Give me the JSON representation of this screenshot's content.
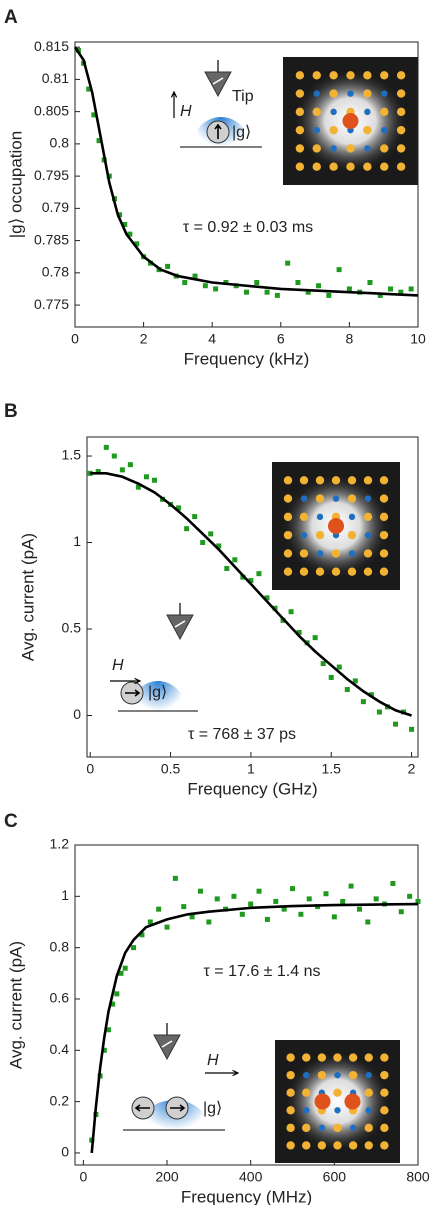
{
  "chart_data": [
    {
      "type": "scatter",
      "panel": "A",
      "xlabel": "Frequency (kHz)",
      "ylabel": "|g⟩ occupation",
      "xlim": [
        0,
        10
      ],
      "ylim": [
        0.7716,
        0.8158
      ],
      "xticks": [
        0,
        2,
        4,
        6,
        8,
        10
      ],
      "yticks": [
        0.775,
        0.78,
        0.785,
        0.79,
        0.795,
        0.8,
        0.805,
        0.81,
        0.815
      ],
      "annotations": [
        "Tip",
        "H",
        "|g⟩",
        "τ = 0.92 ± 0.03 ms"
      ],
      "series": [
        {
          "mode": "markers",
          "color": "#1f9a1f",
          "x": [
            0.1,
            0.25,
            0.4,
            0.55,
            0.7,
            0.85,
            1.0,
            1.15,
            1.3,
            1.45,
            1.6,
            1.8,
            2.0,
            2.2,
            2.45,
            2.7,
            2.95,
            3.2,
            3.5,
            3.8,
            4.1,
            4.4,
            4.7,
            5.0,
            5.3,
            5.6,
            5.9,
            6.2,
            6.5,
            6.8,
            7.1,
            7.4,
            7.7,
            8.0,
            8.3,
            8.6,
            8.9,
            9.2,
            9.5,
            9.8
          ],
          "values": [
            0.8145,
            0.8125,
            0.8085,
            0.8045,
            0.8005,
            0.7975,
            0.795,
            0.7915,
            0.789,
            0.7875,
            0.786,
            0.7845,
            0.7825,
            0.7815,
            0.7805,
            0.781,
            0.7795,
            0.7785,
            0.7795,
            0.778,
            0.7775,
            0.7785,
            0.778,
            0.777,
            0.7785,
            0.777,
            0.7765,
            0.7815,
            0.7785,
            0.777,
            0.778,
            0.7765,
            0.7805,
            0.7775,
            0.777,
            0.7785,
            0.7765,
            0.7775,
            0.777,
            0.7775
          ]
        },
        {
          "mode": "line",
          "color": "#000000",
          "x": [
            0,
            0.25,
            0.5,
            0.75,
            1,
            1.25,
            1.5,
            2,
            2.5,
            3,
            4,
            5,
            6,
            8,
            10
          ],
          "values": [
            0.815,
            0.813,
            0.808,
            0.801,
            0.794,
            0.789,
            0.786,
            0.7825,
            0.7805,
            0.7795,
            0.7785,
            0.778,
            0.7775,
            0.777,
            0.7765
          ]
        }
      ]
    },
    {
      "type": "scatter",
      "panel": "B",
      "xlabel": "Frequency (GHz)",
      "ylabel": "Avg. current (pA)",
      "xlim": [
        -0.02,
        2.04
      ],
      "ylim": [
        -0.24,
        1.61
      ],
      "xticks": [
        0,
        0.5,
        1,
        1.5,
        2
      ],
      "yticks": [
        0,
        0.5,
        1,
        1.5
      ],
      "annotations": [
        "H",
        "|g⟩",
        "τ = 768 ± 37 ps"
      ],
      "series": [
        {
          "mode": "markers",
          "color": "#1f9a1f",
          "x": [
            0,
            0.05,
            0.1,
            0.15,
            0.2,
            0.25,
            0.3,
            0.35,
            0.4,
            0.45,
            0.5,
            0.55,
            0.6,
            0.65,
            0.7,
            0.75,
            0.8,
            0.85,
            0.9,
            0.95,
            1.0,
            1.05,
            1.1,
            1.15,
            1.2,
            1.25,
            1.3,
            1.35,
            1.4,
            1.45,
            1.5,
            1.55,
            1.6,
            1.65,
            1.7,
            1.75,
            1.8,
            1.85,
            1.9,
            1.95,
            2.0
          ],
          "values": [
            1.4,
            1.41,
            1.55,
            1.5,
            1.42,
            1.45,
            1.32,
            1.38,
            1.36,
            1.25,
            1.22,
            1.2,
            1.08,
            1.15,
            1.0,
            1.05,
            0.98,
            0.85,
            0.9,
            0.8,
            0.78,
            0.82,
            0.68,
            0.62,
            0.55,
            0.6,
            0.48,
            0.42,
            0.45,
            0.3,
            0.22,
            0.28,
            0.15,
            0.2,
            0.08,
            0.12,
            0.02,
            0.05,
            -0.05,
            0.02,
            -0.08
          ]
        },
        {
          "mode": "line",
          "color": "#000000",
          "x": [
            0,
            0.1,
            0.2,
            0.3,
            0.4,
            0.5,
            0.6,
            0.7,
            0.8,
            0.9,
            1.0,
            1.1,
            1.2,
            1.3,
            1.4,
            1.5,
            1.6,
            1.7,
            1.8,
            1.9,
            2.0
          ],
          "values": [
            1.4,
            1.4,
            1.38,
            1.34,
            1.29,
            1.22,
            1.14,
            1.05,
            0.96,
            0.86,
            0.76,
            0.66,
            0.56,
            0.46,
            0.37,
            0.29,
            0.21,
            0.14,
            0.08,
            0.03,
            0.0
          ]
        }
      ]
    },
    {
      "type": "scatter",
      "panel": "C",
      "xlabel": "Frequency (MHz)",
      "ylabel": "Avg. current (pA)",
      "xlim": [
        -20,
        800
      ],
      "ylim": [
        -0.047,
        1.2
      ],
      "xticks": [
        0,
        200,
        400,
        600,
        800
      ],
      "yticks": [
        0,
        0.2,
        0.4,
        0.6,
        0.8,
        1,
        1.2
      ],
      "annotations": [
        "H",
        "|g⟩",
        "τ = 17.6 ± 1.4 ns"
      ],
      "series": [
        {
          "mode": "markers",
          "color": "#1f9a1f",
          "x": [
            20,
            30,
            40,
            50,
            60,
            70,
            80,
            90,
            100,
            120,
            140,
            160,
            180,
            200,
            220,
            240,
            260,
            280,
            300,
            320,
            340,
            360,
            380,
            400,
            420,
            440,
            460,
            480,
            500,
            520,
            540,
            560,
            580,
            600,
            620,
            640,
            660,
            680,
            700,
            720,
            740,
            760,
            780,
            800
          ],
          "values": [
            0.05,
            0.15,
            0.3,
            0.4,
            0.48,
            0.58,
            0.62,
            0.7,
            0.72,
            0.8,
            0.85,
            0.9,
            0.95,
            0.88,
            1.07,
            0.96,
            0.92,
            1.02,
            0.9,
            0.99,
            0.95,
            1.0,
            0.93,
            0.97,
            1.02,
            0.91,
            0.98,
            0.95,
            1.03,
            0.93,
            0.99,
            0.96,
            1.01,
            0.92,
            0.98,
            1.04,
            0.95,
            0.9,
            0.99,
            0.97,
            1.05,
            0.94,
            1.0,
            0.98
          ]
        },
        {
          "mode": "line",
          "color": "#000000",
          "x": [
            20,
            30,
            40,
            50,
            60,
            80,
            100,
            120,
            150,
            200,
            250,
            300,
            400,
            500,
            600,
            700,
            800
          ],
          "values": [
            0,
            0.18,
            0.33,
            0.45,
            0.55,
            0.69,
            0.78,
            0.83,
            0.88,
            0.91,
            0.93,
            0.94,
            0.955,
            0.962,
            0.966,
            0.968,
            0.97
          ]
        }
      ]
    }
  ]
}
